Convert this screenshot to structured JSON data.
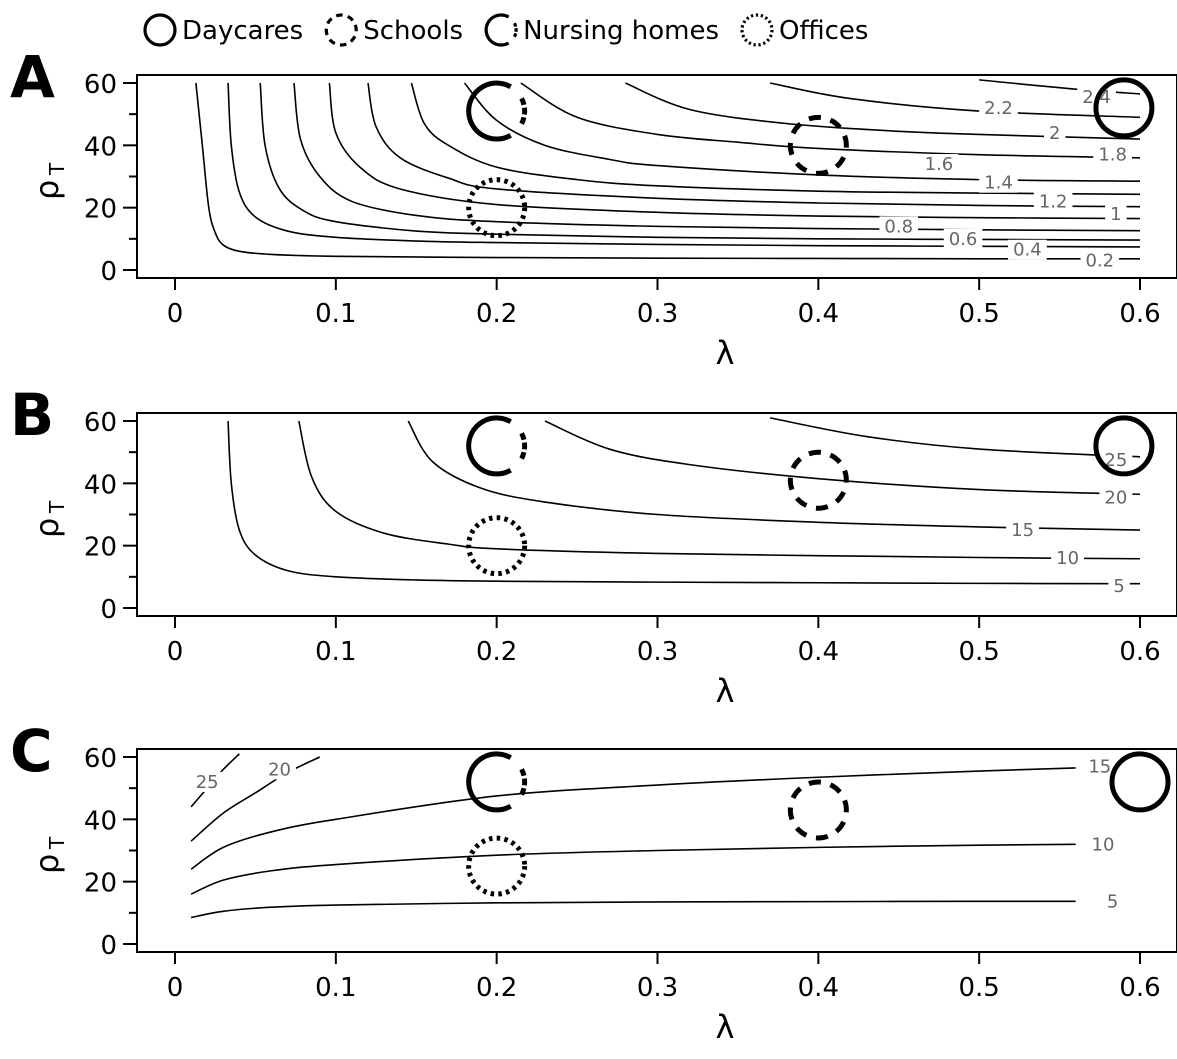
{
  "legend": [
    {
      "label": "Daycares",
      "style": "solid"
    },
    {
      "label": "Schools",
      "style": "dashed"
    },
    {
      "label": "Nursing homes",
      "style": "half"
    },
    {
      "label": "Offices",
      "style": "dotted"
    }
  ],
  "chart_data": [
    {
      "type": "line",
      "panel": "A",
      "subtype": "contour",
      "xlabel": "λ",
      "ylabel": "ρ",
      "ylabel_sub": "T",
      "xlim": [
        0,
        0.6
      ],
      "ylim": [
        0,
        60
      ],
      "xticks": [
        "0",
        "0.1",
        "0.2",
        "0.3",
        "0.4",
        "0.5",
        "0.6"
      ],
      "yticks": [
        "0",
        "20",
        "40",
        "60"
      ],
      "contour_shape": "hyperbolic",
      "contours": [
        {
          "label": "0.2",
          "points": [
            [
              0.013,
              60
            ],
            [
              0.017,
              40
            ],
            [
              0.021,
              20
            ],
            [
              0.025,
              12
            ],
            [
              0.03,
              8
            ],
            [
              0.04,
              6
            ],
            [
              0.06,
              5
            ],
            [
              0.1,
              4.4
            ],
            [
              0.2,
              4
            ],
            [
              0.3,
              3.8
            ],
            [
              0.4,
              3.7
            ],
            [
              0.5,
              3.6
            ],
            [
              0.6,
              3.6
            ]
          ],
          "label_at": [
            0.575,
            3
          ]
        },
        {
          "label": "0.4",
          "points": [
            [
              0.033,
              60
            ],
            [
              0.035,
              40
            ],
            [
              0.04,
              25
            ],
            [
              0.05,
              17
            ],
            [
              0.07,
              12.5
            ],
            [
              0.1,
              10.5
            ],
            [
              0.15,
              9.3
            ],
            [
              0.2,
              8.8
            ],
            [
              0.3,
              8.2
            ],
            [
              0.4,
              7.8
            ],
            [
              0.5,
              7.6
            ],
            [
              0.6,
              7.4
            ]
          ],
          "label_at": [
            0.53,
            6.5
          ]
        },
        {
          "label": "0.6",
          "points": [
            [
              0.053,
              60
            ],
            [
              0.056,
              40
            ],
            [
              0.065,
              26
            ],
            [
              0.08,
              19
            ],
            [
              0.1,
              15.5
            ],
            [
              0.15,
              12.5
            ],
            [
              0.2,
              11.5
            ],
            [
              0.3,
              10.5
            ],
            [
              0.4,
              10
            ],
            [
              0.5,
              9.8
            ],
            [
              0.6,
              9.6
            ]
          ],
          "label_at": [
            0.49,
            10
          ]
        },
        {
          "label": "0.8",
          "points": [
            [
              0.074,
              60
            ],
            [
              0.078,
              42
            ],
            [
              0.09,
              30
            ],
            [
              0.11,
              22
            ],
            [
              0.15,
              17.5
            ],
            [
              0.2,
              15.5
            ],
            [
              0.3,
              14
            ],
            [
              0.4,
              13.3
            ],
            [
              0.5,
              12.9
            ],
            [
              0.6,
              12.6
            ]
          ],
          "label_at": [
            0.45,
            14
          ]
        },
        {
          "label": "1",
          "points": [
            [
              0.096,
              60
            ],
            [
              0.1,
              44
            ],
            [
              0.115,
              33
            ],
            [
              0.14,
              26
            ],
            [
              0.2,
              21
            ],
            [
              0.3,
              18.5
            ],
            [
              0.4,
              17.3
            ],
            [
              0.5,
              16.8
            ],
            [
              0.6,
              16.5
            ]
          ],
          "label_at": [
            0.585,
            18
          ]
        },
        {
          "label": "1.2",
          "points": [
            [
              0.12,
              60
            ],
            [
              0.125,
              46
            ],
            [
              0.14,
              36
            ],
            [
              0.17,
              29.5
            ],
            [
              0.2,
              26
            ],
            [
              0.3,
              23
            ],
            [
              0.4,
              21.5
            ],
            [
              0.5,
              20.7
            ],
            [
              0.6,
              20.3
            ]
          ],
          "label_at": [
            0.546,
            22
          ]
        },
        {
          "label": "1.4",
          "points": [
            [
              0.147,
              60
            ],
            [
              0.155,
              47
            ],
            [
              0.17,
              40
            ],
            [
              0.2,
              33
            ],
            [
              0.25,
              29
            ],
            [
              0.3,
              27
            ],
            [
              0.4,
              25.3
            ],
            [
              0.5,
              24.7
            ],
            [
              0.6,
              24.3
            ]
          ],
          "label_at": [
            0.512,
            28
          ]
        },
        {
          "label": "1.6",
          "points": [
            [
              0.18,
              60
            ],
            [
              0.2,
              48
            ],
            [
              0.23,
              40
            ],
            [
              0.27,
              35.5
            ],
            [
              0.3,
              33.5
            ],
            [
              0.4,
              30.5
            ],
            [
              0.5,
              29
            ],
            [
              0.6,
              28.5
            ]
          ],
          "label_at": [
            0.475,
            34
          ]
        },
        {
          "label": "1.8",
          "points": [
            [
              0.215,
              60
            ],
            [
              0.25,
              49
            ],
            [
              0.3,
              43.5
            ],
            [
              0.35,
              41
            ],
            [
              0.4,
              39
            ],
            [
              0.5,
              37
            ],
            [
              0.6,
              36
            ]
          ],
          "label_at": [
            0.583,
            37
          ]
        },
        {
          "label": "2",
          "points": [
            [
              0.28,
              60
            ],
            [
              0.32,
              51.5
            ],
            [
              0.38,
              47
            ],
            [
              0.45,
              44.5
            ],
            [
              0.5,
              43.5
            ],
            [
              0.6,
              42
            ]
          ],
          "label_at": [
            0.547,
            44
          ]
        },
        {
          "label": "2.2",
          "points": [
            [
              0.37,
              60
            ],
            [
              0.42,
              55
            ],
            [
              0.5,
              51
            ],
            [
              0.6,
              49
            ]
          ],
          "label_at": [
            0.512,
            52
          ]
        },
        {
          "label": "2.4",
          "points": [
            [
              0.5,
              61
            ],
            [
              0.56,
              58
            ],
            [
              0.6,
              56.5
            ]
          ],
          "label_at": [
            0.573,
            55.5
          ]
        }
      ],
      "settings": [
        {
          "name": "Daycares",
          "style": "solid",
          "x": 0.59,
          "y": 52
        },
        {
          "name": "Schools",
          "style": "dashed",
          "x": 0.4,
          "y": 40
        },
        {
          "name": "Nursing homes",
          "style": "half",
          "x": 0.2,
          "y": 51
        },
        {
          "name": "Offices",
          "style": "dotted",
          "x": 0.2,
          "y": 20
        }
      ]
    },
    {
      "type": "line",
      "panel": "B",
      "subtype": "contour",
      "xlabel": "λ",
      "ylabel": "ρ",
      "ylabel_sub": "T",
      "xlim": [
        0,
        0.6
      ],
      "ylim": [
        0,
        60
      ],
      "xticks": [
        "0",
        "0.1",
        "0.2",
        "0.3",
        "0.4",
        "0.5",
        "0.6"
      ],
      "yticks": [
        "0",
        "20",
        "40",
        "60"
      ],
      "contours": [
        {
          "label": "5",
          "points": [
            [
              0.033,
              60
            ],
            [
              0.035,
              40
            ],
            [
              0.04,
              25
            ],
            [
              0.05,
              17
            ],
            [
              0.07,
              12
            ],
            [
              0.1,
              10
            ],
            [
              0.15,
              9
            ],
            [
              0.2,
              8.6
            ],
            [
              0.3,
              8.3
            ],
            [
              0.4,
              8.1
            ],
            [
              0.5,
              7.9
            ],
            [
              0.6,
              7.8
            ]
          ],
          "label_at": [
            0.587,
            7
          ]
        },
        {
          "label": "10",
          "points": [
            [
              0.077,
              60
            ],
            [
              0.085,
              42
            ],
            [
              0.1,
              31
            ],
            [
              0.13,
              24
            ],
            [
              0.17,
              20.5
            ],
            [
              0.2,
              19
            ],
            [
              0.3,
              17.5
            ],
            [
              0.4,
              16.8
            ],
            [
              0.5,
              16.2
            ],
            [
              0.6,
              15.8
            ]
          ],
          "label_at": [
            0.555,
            16
          ]
        },
        {
          "label": "15",
          "points": [
            [
              0.145,
              60
            ],
            [
              0.16,
              47
            ],
            [
              0.19,
              38.5
            ],
            [
              0.23,
              34
            ],
            [
              0.3,
              30
            ],
            [
              0.4,
              27.5
            ],
            [
              0.5,
              26
            ],
            [
              0.6,
              25
            ]
          ],
          "label_at": [
            0.527,
            25
          ]
        },
        {
          "label": "20",
          "points": [
            [
              0.23,
              60
            ],
            [
              0.27,
              51
            ],
            [
              0.32,
              46
            ],
            [
              0.4,
              41.5
            ],
            [
              0.5,
              38
            ],
            [
              0.6,
              36.5
            ]
          ],
          "label_at": [
            0.585,
            35.5
          ]
        },
        {
          "label": "25",
          "points": [
            [
              0.37,
              61
            ],
            [
              0.43,
              55
            ],
            [
              0.5,
              51
            ],
            [
              0.6,
              48.5
            ]
          ],
          "label_at": [
            0.585,
            47.5
          ]
        }
      ],
      "settings": [
        {
          "name": "Daycares",
          "style": "solid",
          "x": 0.59,
          "y": 52
        },
        {
          "name": "Schools",
          "style": "dashed",
          "x": 0.4,
          "y": 41
        },
        {
          "name": "Nursing homes",
          "style": "half",
          "x": 0.2,
          "y": 52
        },
        {
          "name": "Offices",
          "style": "dotted",
          "x": 0.2,
          "y": 20
        }
      ]
    },
    {
      "type": "line",
      "panel": "C",
      "subtype": "contour",
      "xlabel": "λ",
      "ylabel": "ρ",
      "ylabel_sub": "T",
      "xlim": [
        0,
        0.6
      ],
      "ylim": [
        0,
        60
      ],
      "xticks": [
        "0",
        "0.1",
        "0.2",
        "0.3",
        "0.4",
        "0.5",
        "0.6"
      ],
      "yticks": [
        "0",
        "20",
        "40",
        "60"
      ],
      "contours": [
        {
          "label": "5",
          "points": [
            [
              0.01,
              8.5
            ],
            [
              0.03,
              10.5
            ],
            [
              0.06,
              11.8
            ],
            [
              0.1,
              12.5
            ],
            [
              0.2,
              13.2
            ],
            [
              0.3,
              13.5
            ],
            [
              0.4,
              13.6
            ],
            [
              0.5,
              13.7
            ],
            [
              0.56,
              13.7
            ]
          ],
          "label_at": [
            0.583,
            13.7
          ]
        },
        {
          "label": "10",
          "points": [
            [
              0.01,
              16
            ],
            [
              0.03,
              20.5
            ],
            [
              0.06,
              23.5
            ],
            [
              0.1,
              25.5
            ],
            [
              0.2,
              28.5
            ],
            [
              0.3,
              30
            ],
            [
              0.4,
              31
            ],
            [
              0.5,
              31.7
            ],
            [
              0.56,
              32
            ]
          ],
          "label_at": [
            0.577,
            32
          ]
        },
        {
          "label": "15",
          "points": [
            [
              0.01,
              24
            ],
            [
              0.03,
              31
            ],
            [
              0.06,
              36
            ],
            [
              0.1,
              40
            ],
            [
              0.2,
              47.5
            ],
            [
              0.3,
              51
            ],
            [
              0.4,
              53.5
            ],
            [
              0.5,
              55.5
            ],
            [
              0.56,
              56.5
            ]
          ],
          "label_at": [
            0.575,
            57
          ]
        },
        {
          "label": "20",
          "points": [
            [
              0.01,
              33
            ],
            [
              0.03,
              42
            ],
            [
              0.05,
              48.5
            ],
            [
              0.07,
              55
            ],
            [
              0.09,
              60
            ]
          ],
          "label_at": [
            0.065,
            56
          ]
        },
        {
          "label": "25",
          "points": [
            [
              0.01,
              44
            ],
            [
              0.02,
              50
            ],
            [
              0.03,
              56
            ],
            [
              0.04,
              61
            ]
          ],
          "label_at": [
            0.02,
            52
          ]
        }
      ],
      "settings": [
        {
          "name": "Daycares",
          "style": "solid",
          "x": 0.6,
          "y": 52
        },
        {
          "name": "Schools",
          "style": "dashed",
          "x": 0.4,
          "y": 43
        },
        {
          "name": "Nursing homes",
          "style": "half",
          "x": 0.2,
          "y": 52
        },
        {
          "name": "Offices",
          "style": "dotted",
          "x": 0.2,
          "y": 25
        }
      ]
    }
  ]
}
